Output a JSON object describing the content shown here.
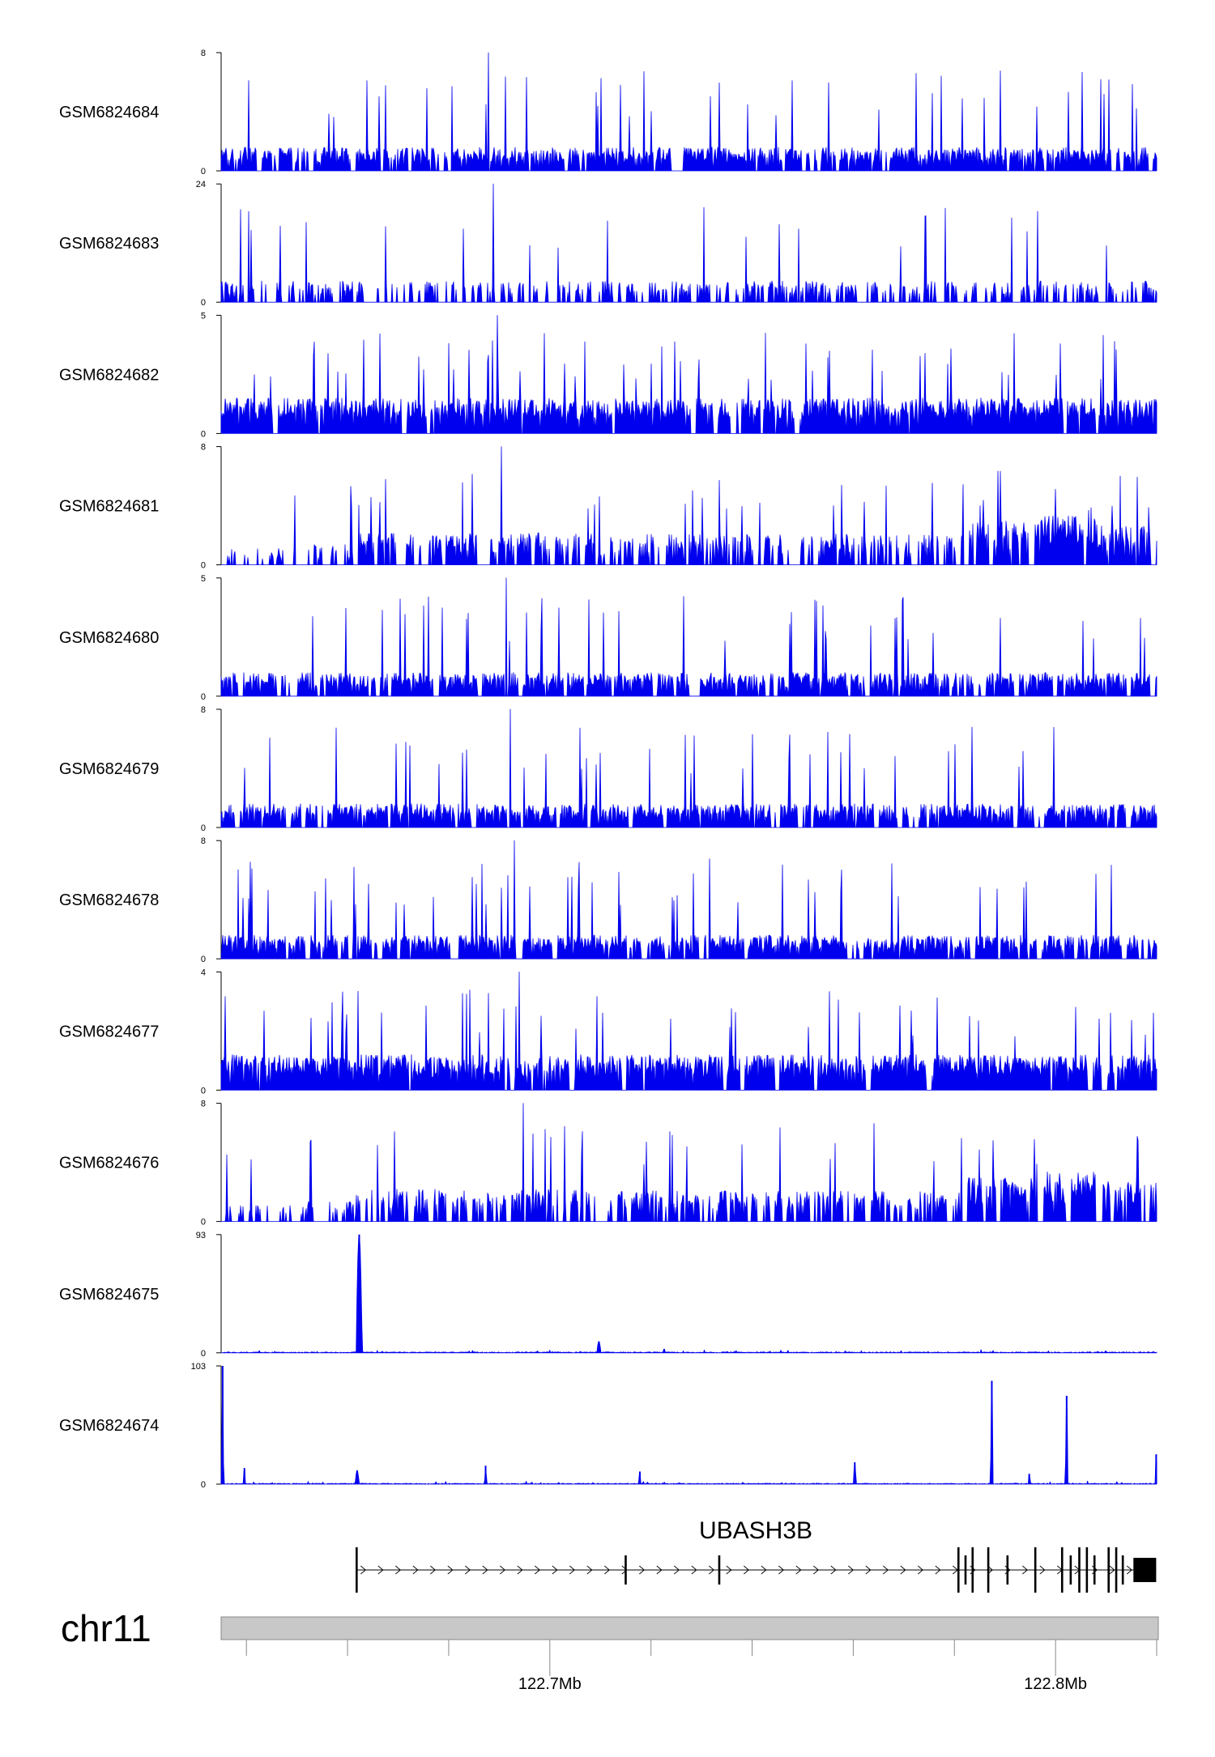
{
  "chart_data": {
    "type": "area",
    "title": "",
    "gene": "UBASH3B",
    "chromosome": "chr11",
    "xlabel": "",
    "x_range_mb": [
      122.635,
      122.82
    ],
    "x_ticks_labeled": [
      "122.7Mb",
      "122.8Mb"
    ],
    "series": [
      {
        "name": "GSM6824684",
        "ylim": [
          0,
          8
        ],
        "ymax_label": "8",
        "ymin_label": "0",
        "profile": "uniform_sparse",
        "peaks": []
      },
      {
        "name": "GSM6824683",
        "ylim": [
          0,
          24
        ],
        "ymax_label": "24",
        "ymin_label": "0",
        "profile": "very_sparse",
        "peaks": []
      },
      {
        "name": "GSM6824682",
        "ylim": [
          0,
          5
        ],
        "ymax_label": "5",
        "ymin_label": "0",
        "profile": "uniform_dense",
        "peaks": []
      },
      {
        "name": "GSM6824681",
        "ylim": [
          0,
          8
        ],
        "ymax_label": "8",
        "ymin_label": "0",
        "profile": "gene_body_enriched",
        "peaks": []
      },
      {
        "name": "GSM6824680",
        "ylim": [
          0,
          5
        ],
        "ymax_label": "5",
        "ymin_label": "0",
        "profile": "uniform_sparse",
        "peaks": []
      },
      {
        "name": "GSM6824679",
        "ylim": [
          0,
          8
        ],
        "ymax_label": "8",
        "ymin_label": "0",
        "profile": "uniform_sparse",
        "peaks": []
      },
      {
        "name": "GSM6824678",
        "ylim": [
          0,
          8
        ],
        "ymax_label": "8",
        "ymin_label": "0",
        "profile": "uniform_sparse",
        "peaks": []
      },
      {
        "name": "GSM6824677",
        "ylim": [
          0,
          4
        ],
        "ymax_label": "4",
        "ymin_label": "0",
        "profile": "uniform_dense",
        "peaks": []
      },
      {
        "name": "GSM6824676",
        "ylim": [
          0,
          8
        ],
        "ymax_label": "8",
        "ymin_label": "0",
        "profile": "gene_body_enriched",
        "peaks": []
      },
      {
        "name": "GSM6824675",
        "ylim": [
          0,
          93
        ],
        "ymax_label": "93",
        "ymin_label": "0",
        "profile": "flat",
        "peaks": [
          {
            "mb": 122.6623,
            "height": 93,
            "width_mb": 0.0012
          },
          {
            "mb": 122.7097,
            "height": 9,
            "width_mb": 0.0008
          },
          {
            "mb": 122.7226,
            "height": 3,
            "width_mb": 0.0005
          }
        ]
      },
      {
        "name": "GSM6824674",
        "ylim": [
          0,
          103
        ],
        "ymax_label": "103",
        "ymin_label": "0",
        "profile": "flat",
        "peaks": [
          {
            "mb": 122.6353,
            "height": 103,
            "width_mb": 0.0004
          },
          {
            "mb": 122.6396,
            "height": 14,
            "width_mb": 0.0004
          },
          {
            "mb": 122.6619,
            "height": 12,
            "width_mb": 0.0008
          },
          {
            "mb": 122.6873,
            "height": 16,
            "width_mb": 0.0004
          },
          {
            "mb": 122.7178,
            "height": 11,
            "width_mb": 0.0004
          },
          {
            "mb": 122.7603,
            "height": 19,
            "width_mb": 0.0005
          },
          {
            "mb": 122.7874,
            "height": 90,
            "width_mb": 0.0005
          },
          {
            "mb": 122.7948,
            "height": 9,
            "width_mb": 0.0004
          },
          {
            "mb": 122.8022,
            "height": 77,
            "width_mb": 0.0005
          },
          {
            "mb": 122.8199,
            "height": 26,
            "width_mb": 0.0004
          }
        ]
      }
    ],
    "gene_model": {
      "name": "UBASH3B",
      "strand": "+",
      "start_mb": 122.6618,
      "end_mb": 122.8199,
      "exons_mb": [
        122.6618,
        122.715,
        122.7335,
        122.7808,
        122.7822,
        122.7836,
        122.7867,
        122.7905,
        122.796,
        122.8013,
        122.803,
        122.8047,
        122.8062,
        122.8077,
        122.8105,
        122.812,
        122.8133
      ],
      "utr_block_mb": [
        122.8154,
        122.8199
      ]
    }
  }
}
